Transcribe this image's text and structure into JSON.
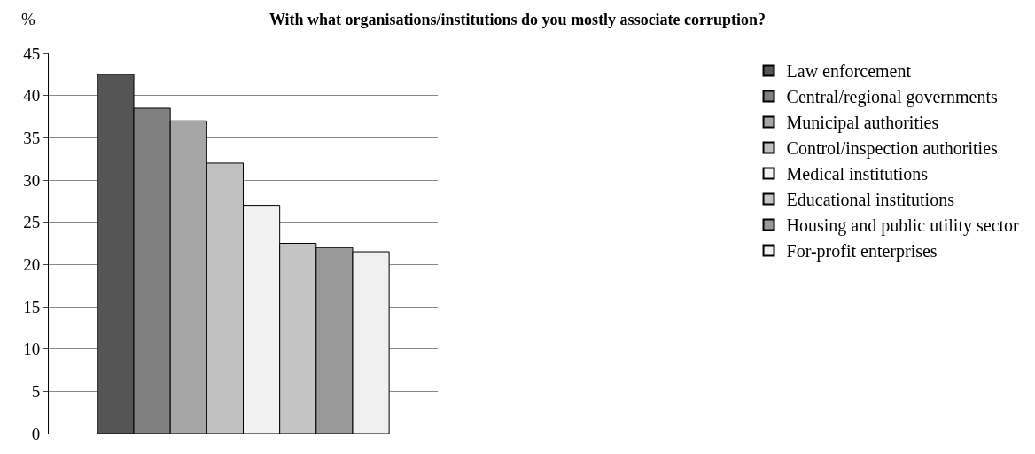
{
  "chart_data": {
    "type": "bar",
    "title": "With what organisations/institutions do you mostly associate corruption?",
    "ylabel": "%",
    "categories": [
      null
    ],
    "series": [
      {
        "name": "Law enforcement",
        "color": "#555555",
        "values": [
          42.5
        ]
      },
      {
        "name": "Central/regional governments",
        "color": "#808080",
        "values": [
          38.5
        ]
      },
      {
        "name": "Municipal authorities",
        "color": "#a6a6a6",
        "values": [
          37
        ]
      },
      {
        "name": "Control/inspection authorities",
        "color": "#c0c0c0",
        "values": [
          32
        ]
      },
      {
        "name": "Medical institutions",
        "color": "#f2f2f2",
        "values": [
          27
        ]
      },
      {
        "name": "Educational institutions",
        "color": "#c4c4c4",
        "values": [
          22.5
        ]
      },
      {
        "name": "Housing and public utility sector",
        "color": "#999999",
        "values": [
          22
        ]
      },
      {
        "name": "For-profit enterprises",
        "color": "#f0f0f0",
        "values": [
          21.5
        ]
      }
    ],
    "ylim": [
      0,
      45
    ],
    "yticks": [
      0,
      5,
      10,
      15,
      20,
      25,
      30,
      35,
      40,
      45
    ],
    "grid": "y",
    "legend": "right"
  }
}
